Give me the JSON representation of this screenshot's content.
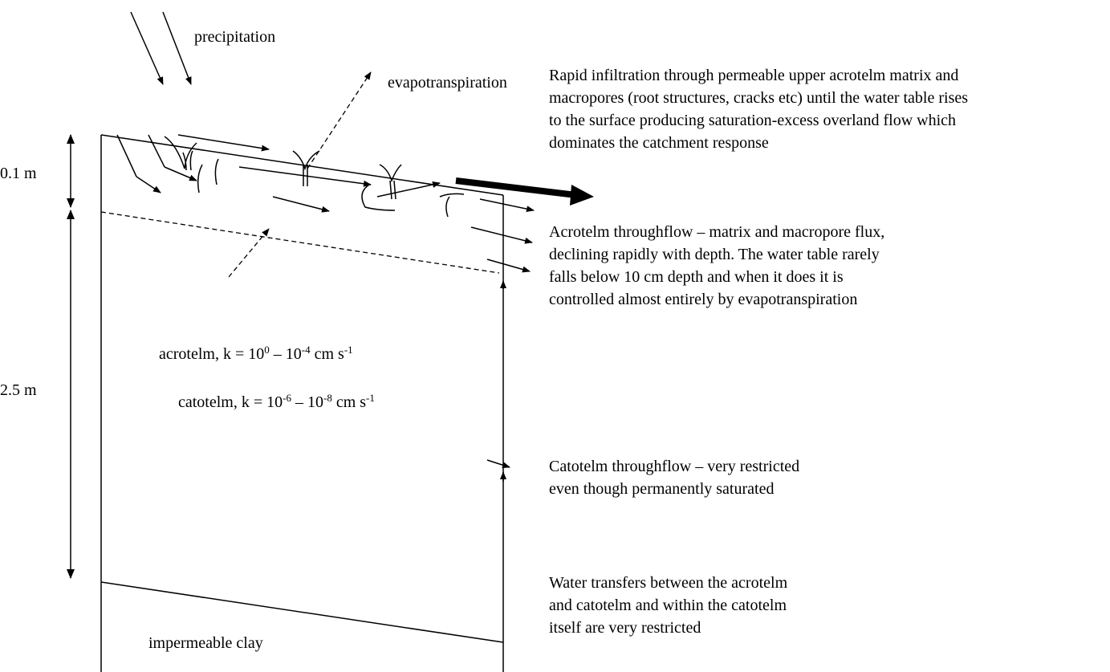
{
  "labels": {
    "precipitation": "precipitation",
    "evapotranspiration": "evapotranspiration",
    "depth_upper": "0.1 m",
    "depth_lower": "2.5 m",
    "clay": "impermeable clay"
  },
  "acrotelm": [
    {
      "text": "acrotelm, k = 10"
    },
    {
      "sup": "0"
    },
    {
      "text": " – 10"
    },
    {
      "sup": "-4"
    },
    {
      "text": " cm s"
    },
    {
      "sup": "-1"
    }
  ],
  "catotelm": [
    {
      "text": "catotelm, k = 10"
    },
    {
      "sup": "-6"
    },
    {
      "text": " – 10"
    },
    {
      "sup": "-8"
    },
    {
      "text": " cm s"
    },
    {
      "sup": "-1"
    }
  ],
  "notes": [
    [
      "Rapid infiltration through permeable upper acrotelm matrix and",
      "macropores (root structures, cracks etc) until the water table rises",
      "to the surface producing saturation-excess overland flow which",
      "dominates the catchment response"
    ],
    [
      "Acrotelm throughflow – matrix and macropore flux,",
      "declining rapidly with depth. The water table rarely",
      "falls below 10 cm depth and when it does it is",
      "controlled almost entirely by evapotranspiration"
    ],
    [
      "Catotelm throughflow – very restricted",
      "even though permanently saturated"
    ],
    [
      "Water transfers between the acrotelm",
      "and catotelm and within the catotelm",
      "itself are very restricted"
    ]
  ]
}
